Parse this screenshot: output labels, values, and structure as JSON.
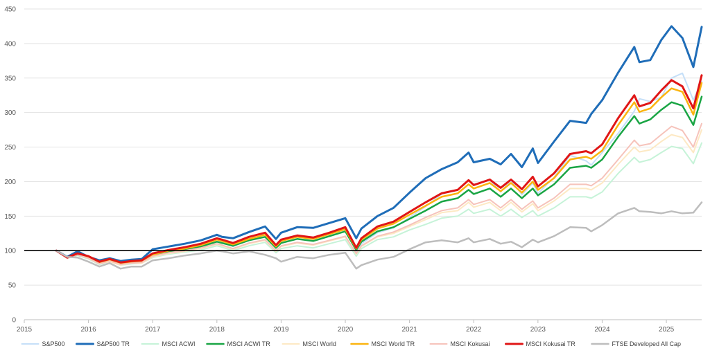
{
  "chart_data": {
    "type": "line",
    "title": "",
    "xlabel": "",
    "ylabel": "",
    "xlim": [
      2015,
      2025.55
    ],
    "ylim": [
      0,
      450
    ],
    "x_ticks": [
      2015,
      2016,
      2017,
      2018,
      2019,
      2020,
      2021,
      2022,
      2023,
      2024,
      2025
    ],
    "y_ticks": [
      0,
      50,
      100,
      150,
      200,
      250,
      300,
      350,
      400,
      450
    ],
    "reference_line": 100,
    "grid": "horizontal",
    "legend_position": "bottom",
    "series": [
      {
        "name": "S&P500",
        "color": "#c5dff8",
        "width": 2,
        "x": [
          2015.5,
          2015.67,
          2015.83,
          2016.0,
          2016.17,
          2016.33,
          2016.5,
          2016.67,
          2016.83,
          2017.0,
          2017.25,
          2017.5,
          2017.75,
          2018.0,
          2018.08,
          2018.25,
          2018.5,
          2018.75,
          2018.92,
          2019.0,
          2019.25,
          2019.5,
          2019.75,
          2020.0,
          2020.17,
          2020.25,
          2020.5,
          2020.75,
          2021.0,
          2021.25,
          2021.5,
          2021.75,
          2021.92,
          2022.0,
          2022.25,
          2022.42,
          2022.58,
          2022.75,
          2022.92,
          2023.0,
          2023.25,
          2023.5,
          2023.75,
          2023.83,
          2024.0,
          2024.25,
          2024.5,
          2024.58,
          2024.75,
          2024.92,
          2025.08,
          2025.25,
          2025.42,
          2025.55
        ],
        "y": [
          100,
          90,
          97,
          90,
          84,
          87,
          81,
          84,
          85,
          95,
          100,
          103,
          107,
          113,
          113,
          106,
          116,
          124,
          106,
          114,
          120,
          118,
          126,
          134,
          98,
          110,
          126,
          133,
          148,
          164,
          182,
          188,
          202,
          196,
          203,
          185,
          202,
          181,
          198,
          183,
          206,
          238,
          230,
          224,
          242,
          270,
          302,
          320,
          316,
          322,
          350,
          357,
          318,
          345
        ]
      },
      {
        "name": "S&P500 TR",
        "color": "#1f6db8",
        "width": 3,
        "x": [
          2015.5,
          2015.67,
          2015.83,
          2016.0,
          2016.17,
          2016.33,
          2016.5,
          2016.67,
          2016.83,
          2017.0,
          2017.25,
          2017.5,
          2017.75,
          2018.0,
          2018.08,
          2018.25,
          2018.5,
          2018.75,
          2018.92,
          2019.0,
          2019.25,
          2019.5,
          2019.75,
          2020.0,
          2020.17,
          2020.25,
          2020.5,
          2020.75,
          2021.0,
          2021.25,
          2021.5,
          2021.75,
          2021.92,
          2022.0,
          2022.25,
          2022.42,
          2022.58,
          2022.75,
          2022.92,
          2023.0,
          2023.25,
          2023.5,
          2023.75,
          2023.83,
          2024.0,
          2024.25,
          2024.5,
          2024.58,
          2024.75,
          2024.92,
          2025.08,
          2025.25,
          2025.42,
          2025.55
        ],
        "y": [
          100,
          91,
          99,
          91,
          86,
          89,
          85,
          87,
          88,
          102,
          106,
          110,
          115,
          123,
          120,
          118,
          127,
          135,
          117,
          126,
          134,
          133,
          140,
          147,
          118,
          132,
          150,
          162,
          184,
          205,
          218,
          228,
          242,
          228,
          233,
          225,
          240,
          221,
          248,
          227,
          258,
          288,
          285,
          298,
          318,
          358,
          395,
          373,
          376,
          405,
          425,
          408,
          366,
          424
        ]
      },
      {
        "name": "MSCI ACWI",
        "color": "#c6f3d8",
        "width": 2,
        "x": [
          2015.5,
          2015.67,
          2015.83,
          2016.0,
          2016.17,
          2016.33,
          2016.5,
          2016.67,
          2016.83,
          2017.0,
          2017.25,
          2017.5,
          2017.75,
          2018.0,
          2018.08,
          2018.25,
          2018.5,
          2018.75,
          2018.92,
          2019.0,
          2019.25,
          2019.5,
          2019.75,
          2020.0,
          2020.17,
          2020.25,
          2020.5,
          2020.75,
          2021.0,
          2021.25,
          2021.5,
          2021.75,
          2021.92,
          2022.0,
          2022.25,
          2022.42,
          2022.58,
          2022.75,
          2022.92,
          2023.0,
          2023.25,
          2023.5,
          2023.75,
          2023.83,
          2024.0,
          2024.25,
          2024.5,
          2024.58,
          2024.75,
          2024.92,
          2025.08,
          2025.25,
          2025.42,
          2025.55
        ],
        "y": [
          100,
          89,
          93,
          88,
          80,
          84,
          79,
          81,
          82,
          90,
          95,
          98,
          101,
          107,
          105,
          100,
          107,
          112,
          97,
          103,
          107,
          104,
          110,
          116,
          92,
          103,
          116,
          120,
          130,
          138,
          147,
          150,
          160,
          154,
          160,
          150,
          160,
          148,
          158,
          150,
          162,
          178,
          178,
          176,
          185,
          212,
          235,
          228,
          232,
          242,
          251,
          248,
          226,
          256
        ]
      },
      {
        "name": "MSCI ACWI TR",
        "color": "#19a544",
        "width": 2.5,
        "x": [
          2015.5,
          2015.67,
          2015.83,
          2016.0,
          2016.17,
          2016.33,
          2016.5,
          2016.67,
          2016.83,
          2017.0,
          2017.25,
          2017.5,
          2017.75,
          2018.0,
          2018.08,
          2018.25,
          2018.5,
          2018.75,
          2018.92,
          2019.0,
          2019.25,
          2019.5,
          2019.75,
          2020.0,
          2020.17,
          2020.25,
          2020.5,
          2020.75,
          2021.0,
          2021.25,
          2021.5,
          2021.75,
          2021.92,
          2022.0,
          2022.25,
          2022.42,
          2022.58,
          2022.75,
          2022.92,
          2023.0,
          2023.25,
          2023.5,
          2023.75,
          2023.83,
          2024.0,
          2024.25,
          2024.5,
          2024.58,
          2024.75,
          2024.92,
          2025.08,
          2025.25,
          2025.42,
          2025.55
        ],
        "y": [
          100,
          90,
          94,
          90,
          82,
          86,
          81,
          83,
          84,
          93,
          98,
          102,
          106,
          113,
          111,
          107,
          115,
          120,
          104,
          111,
          117,
          114,
          121,
          128,
          101,
          113,
          128,
          134,
          146,
          158,
          171,
          176,
          188,
          182,
          190,
          178,
          190,
          176,
          190,
          180,
          196,
          220,
          223,
          220,
          232,
          265,
          295,
          284,
          290,
          304,
          315,
          310,
          282,
          323
        ]
      },
      {
        "name": "MSCI World",
        "color": "#fde9c4",
        "width": 2,
        "x": [
          2015.5,
          2015.67,
          2015.83,
          2016.0,
          2016.17,
          2016.33,
          2016.5,
          2016.67,
          2016.83,
          2017.0,
          2017.25,
          2017.5,
          2017.75,
          2018.0,
          2018.08,
          2018.25,
          2018.5,
          2018.75,
          2018.92,
          2019.0,
          2019.25,
          2019.5,
          2019.75,
          2020.0,
          2020.17,
          2020.25,
          2020.5,
          2020.75,
          2021.0,
          2021.25,
          2021.5,
          2021.75,
          2021.92,
          2022.0,
          2022.25,
          2022.42,
          2022.58,
          2022.75,
          2022.92,
          2023.0,
          2023.25,
          2023.5,
          2023.75,
          2023.83,
          2024.0,
          2024.25,
          2024.5,
          2024.58,
          2024.75,
          2024.92,
          2025.08,
          2025.25,
          2025.42,
          2025.55
        ],
        "y": [
          100,
          89,
          94,
          89,
          81,
          84,
          79,
          82,
          82,
          91,
          96,
          99,
          103,
          109,
          107,
          102,
          110,
          115,
          99,
          106,
          111,
          108,
          114,
          120,
          95,
          106,
          120,
          125,
          135,
          145,
          155,
          158,
          170,
          163,
          170,
          158,
          170,
          156,
          168,
          158,
          172,
          190,
          190,
          188,
          198,
          225,
          250,
          243,
          246,
          258,
          268,
          264,
          242,
          275
        ]
      },
      {
        "name": "MSCI World TR",
        "color": "#fbb40f",
        "width": 2.5,
        "x": [
          2015.5,
          2015.67,
          2015.83,
          2016.0,
          2016.17,
          2016.33,
          2016.5,
          2016.67,
          2016.83,
          2017.0,
          2017.25,
          2017.5,
          2017.75,
          2018.0,
          2018.08,
          2018.25,
          2018.5,
          2018.75,
          2018.92,
          2019.0,
          2019.25,
          2019.5,
          2019.75,
          2020.0,
          2020.17,
          2020.25,
          2020.5,
          2020.75,
          2021.0,
          2021.25,
          2021.5,
          2021.75,
          2021.92,
          2022.0,
          2022.25,
          2022.42,
          2022.58,
          2022.75,
          2022.92,
          2023.0,
          2023.25,
          2023.5,
          2023.75,
          2023.83,
          2024.0,
          2024.25,
          2024.5,
          2024.58,
          2024.75,
          2024.92,
          2025.08,
          2025.25,
          2025.42,
          2025.55
        ],
        "y": [
          100,
          90,
          95,
          91,
          83,
          87,
          82,
          84,
          85,
          94,
          100,
          103,
          108,
          116,
          114,
          109,
          117,
          123,
          106,
          114,
          120,
          117,
          124,
          131,
          103,
          116,
          132,
          139,
          152,
          165,
          178,
          183,
          196,
          190,
          198,
          186,
          198,
          184,
          200,
          188,
          205,
          232,
          236,
          233,
          245,
          282,
          315,
          301,
          306,
          322,
          335,
          330,
          297,
          343
        ]
      },
      {
        "name": "MSCI Kokusai",
        "color": "#f6c3bb",
        "width": 2,
        "x": [
          2015.5,
          2015.67,
          2015.83,
          2016.0,
          2016.17,
          2016.33,
          2016.5,
          2016.67,
          2016.83,
          2017.0,
          2017.25,
          2017.5,
          2017.75,
          2018.0,
          2018.08,
          2018.25,
          2018.5,
          2018.75,
          2018.92,
          2019.0,
          2019.25,
          2019.5,
          2019.75,
          2020.0,
          2020.17,
          2020.25,
          2020.5,
          2020.75,
          2021.0,
          2021.25,
          2021.5,
          2021.75,
          2021.92,
          2022.0,
          2022.25,
          2022.42,
          2022.58,
          2022.75,
          2022.92,
          2023.0,
          2023.25,
          2023.5,
          2023.75,
          2023.83,
          2024.0,
          2024.25,
          2024.5,
          2024.58,
          2024.75,
          2024.92,
          2025.08,
          2025.25,
          2025.42,
          2025.55
        ],
        "y": [
          100,
          89,
          94,
          89,
          81,
          85,
          80,
          82,
          83,
          92,
          97,
          100,
          104,
          110,
          108,
          103,
          111,
          116,
          100,
          107,
          112,
          109,
          115,
          121,
          96,
          107,
          121,
          127,
          137,
          148,
          158,
          162,
          174,
          167,
          174,
          162,
          174,
          160,
          172,
          162,
          176,
          196,
          196,
          194,
          205,
          232,
          260,
          252,
          255,
          268,
          280,
          274,
          250,
          284
        ]
      },
      {
        "name": "MSCI Kokusai TR",
        "color": "#e01616",
        "width": 3,
        "x": [
          2015.5,
          2015.67,
          2015.83,
          2016.0,
          2016.17,
          2016.33,
          2016.5,
          2016.67,
          2016.83,
          2017.0,
          2017.25,
          2017.5,
          2017.75,
          2018.0,
          2018.08,
          2018.25,
          2018.5,
          2018.75,
          2018.92,
          2019.0,
          2019.25,
          2019.5,
          2019.75,
          2020.0,
          2020.17,
          2020.25,
          2020.5,
          2020.75,
          2021.0,
          2021.25,
          2021.5,
          2021.75,
          2021.92,
          2022.0,
          2022.25,
          2022.42,
          2022.58,
          2022.75,
          2022.92,
          2023.0,
          2023.25,
          2023.5,
          2023.75,
          2023.83,
          2024.0,
          2024.25,
          2024.5,
          2024.58,
          2024.75,
          2024.92,
          2025.08,
          2025.25,
          2025.42,
          2025.55
        ],
        "y": [
          100,
          90,
          96,
          92,
          84,
          88,
          83,
          85,
          86,
          96,
          101,
          105,
          110,
          118,
          116,
          111,
          120,
          126,
          108,
          116,
          122,
          119,
          126,
          134,
          104,
          118,
          135,
          142,
          156,
          170,
          183,
          188,
          202,
          195,
          203,
          191,
          203,
          189,
          207,
          193,
          212,
          240,
          244,
          241,
          254,
          292,
          325,
          309,
          314,
          332,
          347,
          338,
          306,
          354
        ]
      },
      {
        "name": "FTSE Developed All Cap",
        "color": "#bdbdbd",
        "width": 2.5,
        "x": [
          2015.5,
          2015.67,
          2015.83,
          2016.0,
          2016.17,
          2016.33,
          2016.5,
          2016.67,
          2016.83,
          2017.0,
          2017.25,
          2017.5,
          2017.75,
          2018.0,
          2018.08,
          2018.25,
          2018.5,
          2018.75,
          2018.92,
          2019.0,
          2019.25,
          2019.5,
          2019.75,
          2020.0,
          2020.17,
          2020.25,
          2020.5,
          2020.75,
          2021.0,
          2021.25,
          2021.5,
          2021.75,
          2021.92,
          2022.0,
          2022.25,
          2022.42,
          2022.58,
          2022.75,
          2022.92,
          2023.0,
          2023.25,
          2023.5,
          2023.75,
          2023.83,
          2024.0,
          2024.25,
          2024.5,
          2024.58,
          2024.75,
          2024.92,
          2025.08,
          2025.25,
          2025.42,
          2025.55
        ],
        "y": [
          100,
          91,
          90,
          84,
          77,
          82,
          74,
          77,
          77,
          86,
          89,
          93,
          96,
          100,
          99,
          96,
          99,
          94,
          89,
          84,
          91,
          89,
          94,
          97,
          74,
          79,
          87,
          91,
          102,
          112,
          115,
          112,
          118,
          112,
          117,
          110,
          113,
          105,
          116,
          112,
          121,
          134,
          133,
          128,
          137,
          154,
          162,
          157,
          156,
          154,
          157,
          154,
          155,
          170
        ]
      }
    ]
  }
}
